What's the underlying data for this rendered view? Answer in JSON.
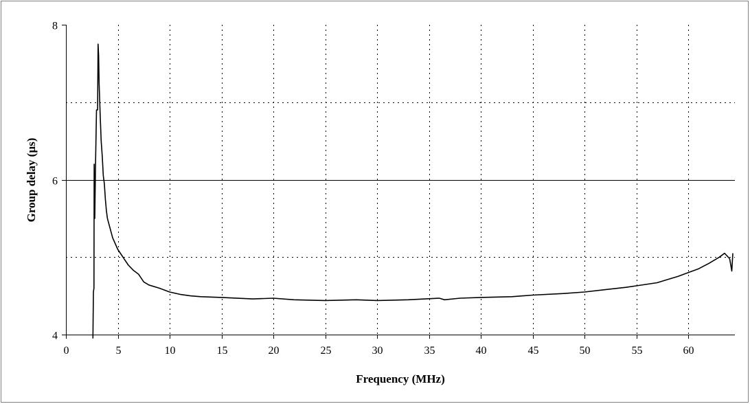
{
  "chart_data": {
    "type": "line",
    "title": "",
    "xlabel": "Frequency (MHz)",
    "ylabel": "Group delay (µs)",
    "xlim": [
      0,
      64.5
    ],
    "ylim": [
      4,
      8
    ],
    "x_ticks": [
      0,
      5,
      10,
      15,
      20,
      25,
      30,
      35,
      40,
      45,
      50,
      55,
      60
    ],
    "y_ticks": [
      4,
      6,
      8
    ],
    "x_tick_labels": [
      "0",
      "5",
      "10",
      "15",
      "20",
      "25",
      "30",
      "35",
      "40",
      "45",
      "50",
      "55",
      "60"
    ],
    "y_tick_labels": [
      "4",
      "6",
      "8"
    ],
    "grid": {
      "vertical": "dotted, every 5 MHz",
      "horizontal_major": "solid at 6",
      "horizontal_minor": "dotted at 5 and 7"
    },
    "series": [
      {
        "color": "#000000",
        "points": [
          [
            2.6,
            3.95
          ],
          [
            2.65,
            4.55
          ],
          [
            2.7,
            4.6
          ],
          [
            2.72,
            6.2
          ],
          [
            2.78,
            5.5
          ],
          [
            2.85,
            6.15
          ],
          [
            2.95,
            6.9
          ],
          [
            3.05,
            6.9
          ],
          [
            3.1,
            7.75
          ],
          [
            3.15,
            7.6
          ],
          [
            3.2,
            7.25
          ],
          [
            3.3,
            6.85
          ],
          [
            3.4,
            6.5
          ],
          [
            3.5,
            6.3
          ],
          [
            3.6,
            6.05
          ],
          [
            3.7,
            5.95
          ],
          [
            3.8,
            5.75
          ],
          [
            3.9,
            5.6
          ],
          [
            4.0,
            5.5
          ],
          [
            4.2,
            5.4
          ],
          [
            4.5,
            5.25
          ],
          [
            5.0,
            5.1
          ],
          [
            5.5,
            5.0
          ],
          [
            6.0,
            4.9
          ],
          [
            6.5,
            4.83
          ],
          [
            7.0,
            4.78
          ],
          [
            7.5,
            4.68
          ],
          [
            8.0,
            4.64
          ],
          [
            9.0,
            4.6
          ],
          [
            10.0,
            4.55
          ],
          [
            11.0,
            4.52
          ],
          [
            12.0,
            4.5
          ],
          [
            13.0,
            4.49
          ],
          [
            15.0,
            4.48
          ],
          [
            18.0,
            4.46
          ],
          [
            20.0,
            4.47
          ],
          [
            22.0,
            4.45
          ],
          [
            25.0,
            4.44
          ],
          [
            28.0,
            4.45
          ],
          [
            30.0,
            4.44
          ],
          [
            33.0,
            4.45
          ],
          [
            36.0,
            4.47
          ],
          [
            36.5,
            4.45
          ],
          [
            38.0,
            4.47
          ],
          [
            40.0,
            4.48
          ],
          [
            43.0,
            4.49
          ],
          [
            45.0,
            4.51
          ],
          [
            48.0,
            4.53
          ],
          [
            50.0,
            4.55
          ],
          [
            52.0,
            4.58
          ],
          [
            54.0,
            4.61
          ],
          [
            55.0,
            4.63
          ],
          [
            57.0,
            4.67
          ],
          [
            58.0,
            4.71
          ],
          [
            59.0,
            4.75
          ],
          [
            60.0,
            4.8
          ],
          [
            61.0,
            4.85
          ],
          [
            62.0,
            4.92
          ],
          [
            63.0,
            5.0
          ],
          [
            63.5,
            5.05
          ],
          [
            64.0,
            4.98
          ],
          [
            64.2,
            4.82
          ],
          [
            64.3,
            5.05
          ]
        ]
      }
    ]
  }
}
